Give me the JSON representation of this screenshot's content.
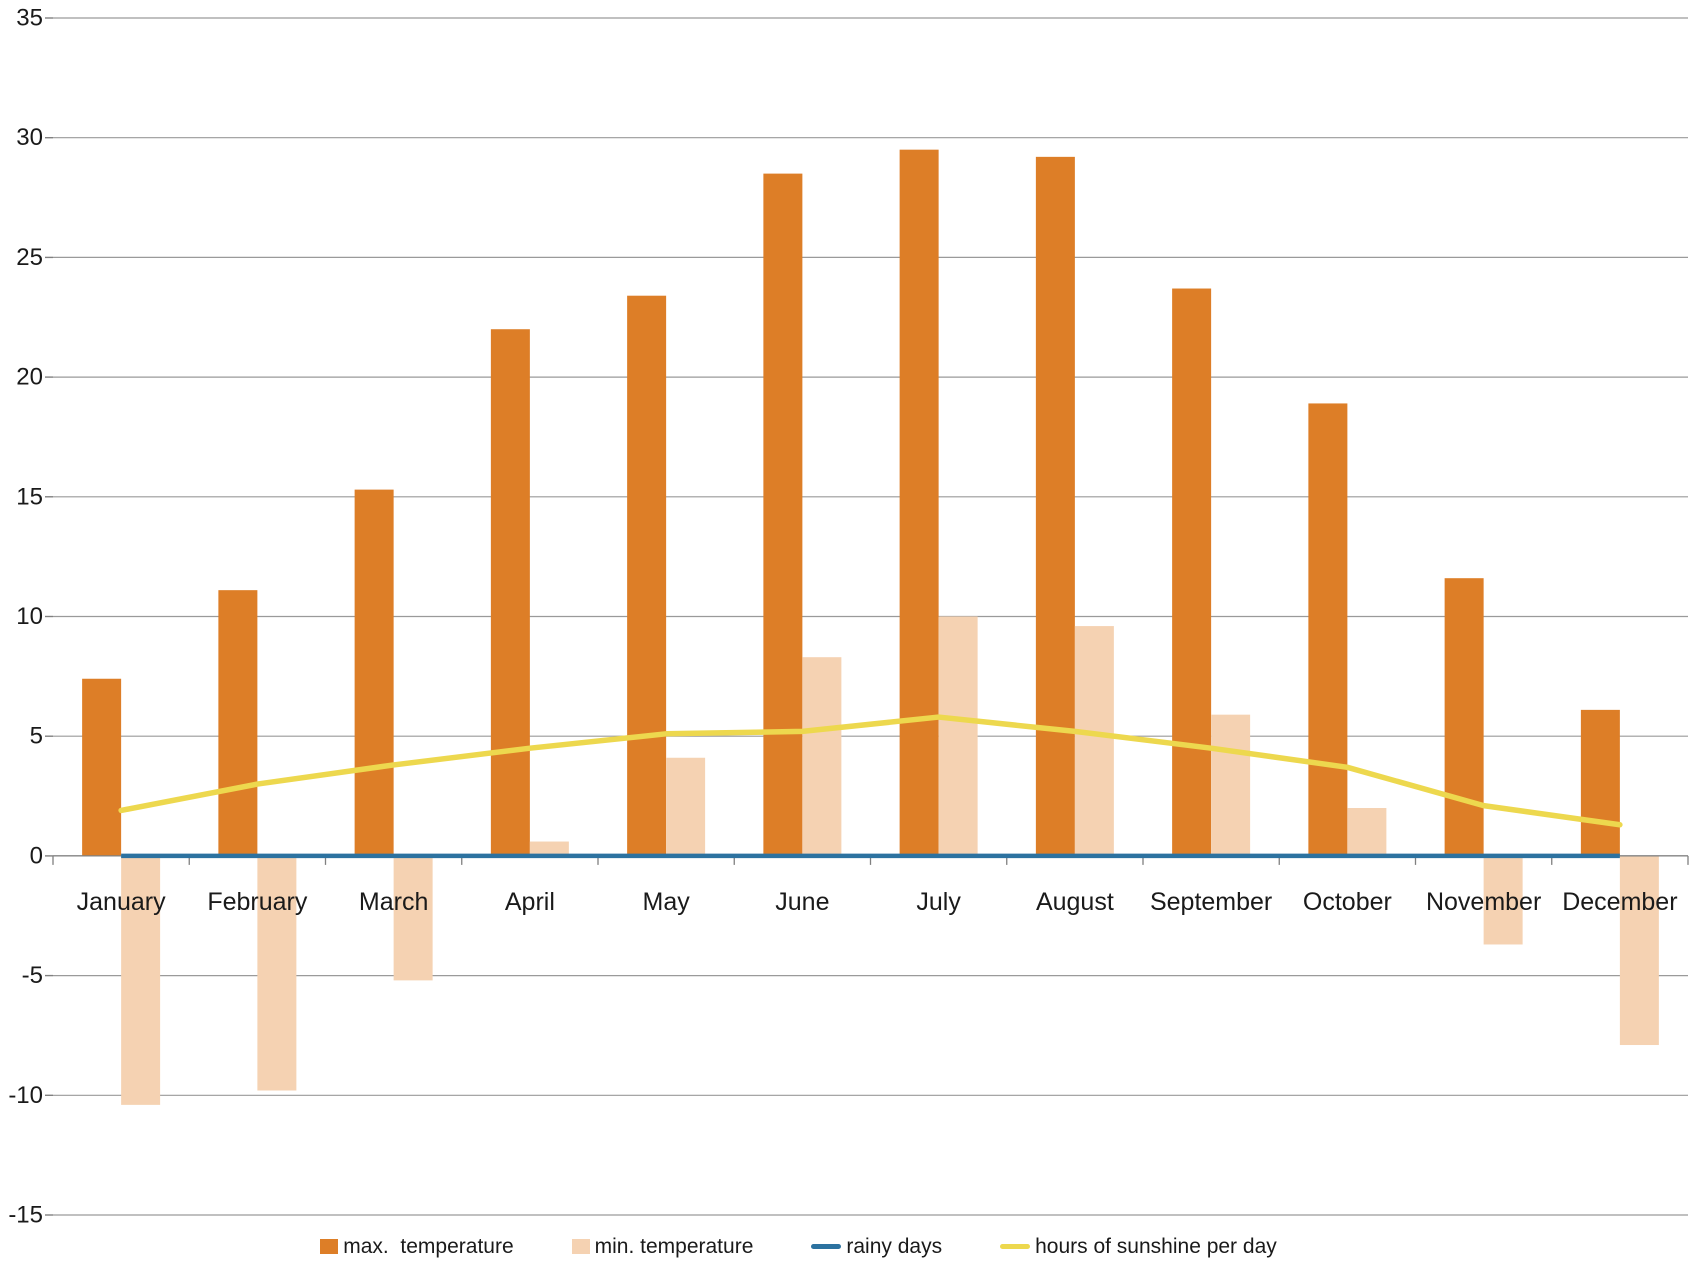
{
  "chart_data": {
    "type": "combo",
    "title": "",
    "xlabel": "",
    "ylabel": "",
    "categories": [
      "January",
      "February",
      "March",
      "April",
      "May",
      "June",
      "July",
      "August",
      "September",
      "October",
      "November",
      "December"
    ],
    "series": [
      {
        "name": "max.  temperature",
        "kind": "bar",
        "color": "#DD7E27",
        "values": [
          7.4,
          11.1,
          15.3,
          22.0,
          23.4,
          28.5,
          29.5,
          29.2,
          23.7,
          18.9,
          11.6,
          6.1
        ]
      },
      {
        "name": "min. temperature",
        "kind": "bar",
        "color": "#F5D2B2",
        "values": [
          -10.4,
          -9.8,
          -5.2,
          0.6,
          4.1,
          8.3,
          10.0,
          9.6,
          5.9,
          2.0,
          -3.7,
          -7.9
        ]
      },
      {
        "name": "rainy days",
        "kind": "line",
        "color": "#2C72A0",
        "values": [
          0,
          0,
          0,
          0,
          0,
          0,
          0,
          0,
          0,
          0,
          0,
          0
        ]
      },
      {
        "name": "hours of sunshine per day",
        "kind": "line",
        "color": "#EDD84E",
        "values": [
          1.9,
          3.0,
          3.8,
          4.5,
          5.1,
          5.2,
          5.8,
          5.2,
          4.5,
          3.7,
          2.1,
          1.3
        ]
      }
    ],
    "ylim": [
      -15,
      35
    ],
    "yticks": [
      35,
      30,
      25,
      20,
      15,
      10,
      5,
      0,
      -5,
      -10,
      -15
    ],
    "grid": true,
    "legend_position": "bottom"
  },
  "colors": {
    "background": "#FFFFFF",
    "gridline": "#9A9A9A",
    "axis": "#808080",
    "text": "#1A1A1A"
  }
}
